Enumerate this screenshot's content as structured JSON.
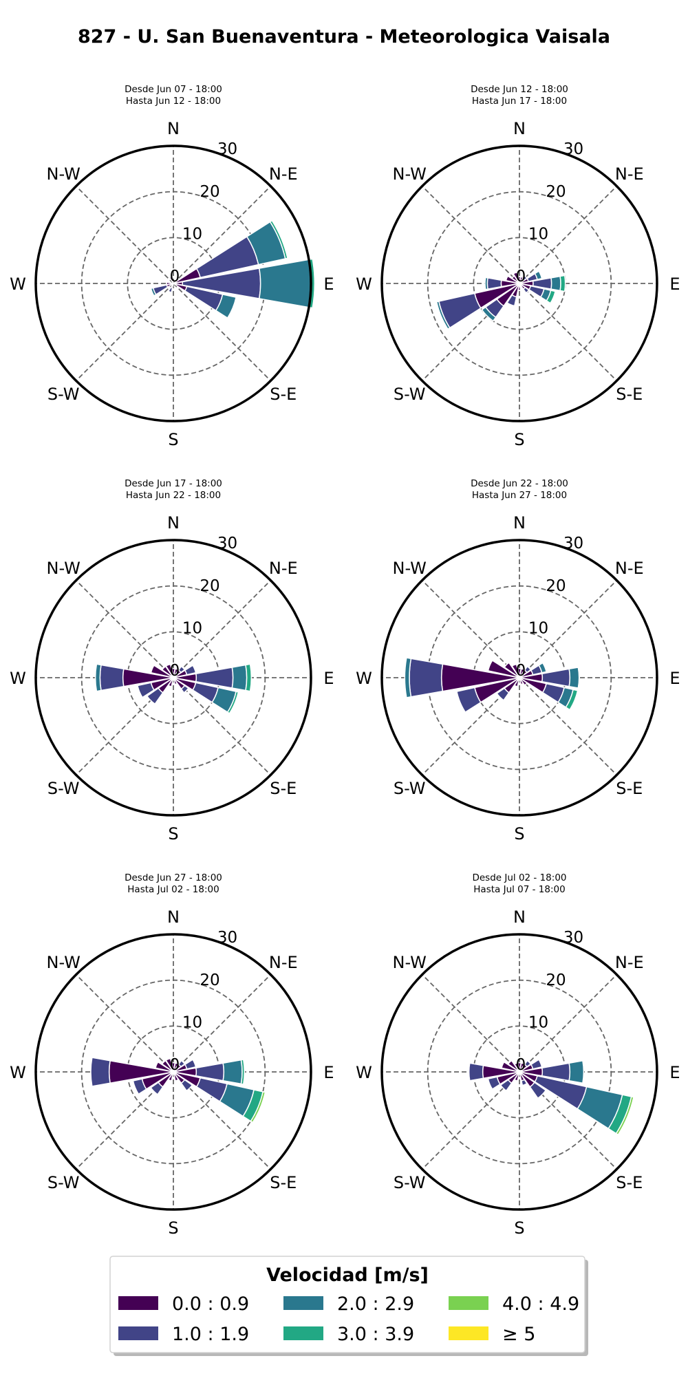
{
  "title": "827 - U. San Buenaventura - Meteorologica Vaisala",
  "direction_labels": [
    "N",
    "N-E",
    "E",
    "S-E",
    "S",
    "S-W",
    "W",
    "N-W"
  ],
  "legend": {
    "title": "Velocidad [m/s]",
    "items": [
      {
        "label": "0.0 : 0.9",
        "color": "#440154"
      },
      {
        "label": "1.0 : 1.9",
        "color": "#414487"
      },
      {
        "label": "2.0 : 2.9",
        "color": "#2a788e"
      },
      {
        "label": "3.0 : 3.9",
        "color": "#22a884"
      },
      {
        "label": "4.0 : 4.9",
        "color": "#7ad151"
      },
      {
        "label": "≥  5",
        "color": "#fde725"
      }
    ]
  },
  "chart_data": [
    {
      "type": "windrose",
      "subtitle_line1": "Desde Jun 07 - 18:00",
      "subtitle_line2": "Hasta Jun 12 - 18:00",
      "radial_ticks": [
        0,
        10,
        20,
        30
      ],
      "rmax": 30,
      "petals": [
        {
          "dir": 67.5,
          "values": [
            6,
            13,
            6,
            0.5
          ]
        },
        {
          "dir": 90,
          "values": [
            2,
            17,
            11,
            0.8
          ]
        },
        {
          "dir": 112.5,
          "values": [
            3,
            8,
            3
          ]
        },
        {
          "dir": 202.5,
          "values": [
            1,
            1
          ]
        },
        {
          "dir": 247.5,
          "values": [
            1.5,
            3,
            0.5
          ]
        },
        {
          "dir": 270,
          "values": [
            1.5
          ]
        },
        {
          "dir": 337.5,
          "values": [
            1.5
          ]
        }
      ]
    },
    {
      "type": "windrose",
      "subtitle_line1": "Desde Jun 12 - 18:00",
      "subtitle_line2": "Hasta Jun 17 - 18:00",
      "radial_ticks": [
        0,
        10,
        20,
        30
      ],
      "rmax": 30,
      "petals": [
        {
          "dir": 0,
          "values": [
            1.5
          ]
        },
        {
          "dir": 22.5,
          "values": [
            1.5
          ]
        },
        {
          "dir": 45,
          "values": [
            1,
            1
          ]
        },
        {
          "dir": 67.5,
          "values": [
            2,
            2,
            1
          ]
        },
        {
          "dir": 90,
          "values": [
            3,
            4,
            2,
            1
          ]
        },
        {
          "dir": 112.5,
          "values": [
            2.5,
            3,
            1.5,
            1
          ]
        },
        {
          "dir": 135,
          "values": [
            1.5,
            1
          ]
        },
        {
          "dir": 180,
          "values": [
            1.5
          ]
        },
        {
          "dir": 202.5,
          "values": [
            3,
            2
          ]
        },
        {
          "dir": 225,
          "values": [
            6,
            3,
            1
          ]
        },
        {
          "dir": 247.5,
          "values": [
            10,
            8,
            0.5
          ]
        },
        {
          "dir": 270,
          "values": [
            4,
            3,
            0.5
          ]
        },
        {
          "dir": 292.5,
          "values": [
            3
          ]
        },
        {
          "dir": 315,
          "values": [
            2
          ]
        },
        {
          "dir": 337.5,
          "values": [
            2.5
          ]
        }
      ]
    },
    {
      "type": "windrose",
      "subtitle_line1": "Desde Jun 17 - 18:00",
      "subtitle_line2": "Hasta Jun 22 - 18:00",
      "radial_ticks": [
        0,
        10,
        20,
        30
      ],
      "rmax": 30,
      "petals": [
        {
          "dir": 0,
          "values": [
            2
          ]
        },
        {
          "dir": 22.5,
          "values": [
            2
          ]
        },
        {
          "dir": 45,
          "values": [
            2,
            1
          ]
        },
        {
          "dir": 67.5,
          "values": [
            3,
            2
          ]
        },
        {
          "dir": 90,
          "values": [
            5,
            8,
            3,
            1
          ]
        },
        {
          "dir": 112.5,
          "values": [
            5,
            5,
            4,
            0.5
          ]
        },
        {
          "dir": 135,
          "values": [
            3,
            1
          ]
        },
        {
          "dir": 157.5,
          "values": [
            1.5
          ]
        },
        {
          "dir": 202.5,
          "values": [
            2
          ]
        },
        {
          "dir": 225,
          "values": [
            4,
            3
          ]
        },
        {
          "dir": 247.5,
          "values": [
            5,
            3
          ]
        },
        {
          "dir": 270,
          "values": [
            11,
            5,
            1
          ]
        },
        {
          "dir": 292.5,
          "values": [
            5
          ]
        },
        {
          "dir": 315,
          "values": [
            3
          ]
        },
        {
          "dir": 337.5,
          "values": [
            3
          ]
        }
      ]
    },
    {
      "type": "windrose",
      "subtitle_line1": "Desde Jun 22 - 18:00",
      "subtitle_line2": "Hasta Jun 27 - 18:00",
      "radial_ticks": [
        0,
        10,
        20,
        30
      ],
      "rmax": 30,
      "petals": [
        {
          "dir": 0,
          "values": [
            2
          ]
        },
        {
          "dir": 22.5,
          "values": [
            2
          ]
        },
        {
          "dir": 45,
          "values": [
            2,
            1
          ]
        },
        {
          "dir": 67.5,
          "values": [
            3,
            2,
            1
          ]
        },
        {
          "dir": 90,
          "values": [
            5,
            6,
            2
          ]
        },
        {
          "dir": 112.5,
          "values": [
            6,
            4,
            2,
            1
          ]
        },
        {
          "dir": 135,
          "values": [
            2
          ]
        },
        {
          "dir": 157.5,
          "values": [
            1.5
          ]
        },
        {
          "dir": 202.5,
          "values": [
            2
          ]
        },
        {
          "dir": 225,
          "values": [
            4,
            2
          ]
        },
        {
          "dir": 247.5,
          "values": [
            10,
            4
          ]
        },
        {
          "dir": 270,
          "values": [
            17,
            7,
            1
          ]
        },
        {
          "dir": 292.5,
          "values": [
            7
          ]
        },
        {
          "dir": 315,
          "values": [
            4
          ]
        },
        {
          "dir": 337.5,
          "values": [
            3
          ]
        }
      ]
    },
    {
      "type": "windrose",
      "subtitle_line1": "Desde Jun 27 - 18:00",
      "subtitle_line2": "Hasta Jul 02 - 18:00",
      "radial_ticks": [
        0,
        10,
        20,
        30
      ],
      "rmax": 30,
      "petals": [
        {
          "dir": 0,
          "values": [
            2
          ]
        },
        {
          "dir": 22.5,
          "values": [
            2
          ]
        },
        {
          "dir": 45,
          "values": [
            2,
            1
          ]
        },
        {
          "dir": 67.5,
          "values": [
            3,
            2
          ]
        },
        {
          "dir": 90,
          "values": [
            5,
            6,
            4,
            0.5
          ]
        },
        {
          "dir": 112.5,
          "values": [
            6,
            6,
            6,
            2,
            0.5
          ]
        },
        {
          "dir": 135,
          "values": [
            3,
            2
          ]
        },
        {
          "dir": 157.5,
          "values": [
            2
          ]
        },
        {
          "dir": 202.5,
          "values": [
            2
          ]
        },
        {
          "dir": 225,
          "values": [
            4,
            2
          ]
        },
        {
          "dir": 247.5,
          "values": [
            7,
            2
          ]
        },
        {
          "dir": 270,
          "values": [
            14,
            4
          ]
        },
        {
          "dir": 292.5,
          "values": [
            4
          ]
        },
        {
          "dir": 315,
          "values": [
            3
          ]
        },
        {
          "dir": 337.5,
          "values": [
            3
          ]
        }
      ]
    },
    {
      "type": "windrose",
      "subtitle_line1": "Desde Jul 02 - 18:00",
      "subtitle_line2": "Hasta Jul 07 - 18:00",
      "radial_ticks": [
        0,
        10,
        20,
        30
      ],
      "rmax": 30,
      "petals": [
        {
          "dir": 0,
          "values": [
            2
          ]
        },
        {
          "dir": 22.5,
          "values": [
            2
          ]
        },
        {
          "dir": 45,
          "values": [
            2,
            1
          ]
        },
        {
          "dir": 67.5,
          "values": [
            3,
            2
          ]
        },
        {
          "dir": 90,
          "values": [
            5,
            6,
            3
          ]
        },
        {
          "dir": 112.5,
          "values": [
            4,
            11,
            8,
            2,
            0.5
          ]
        },
        {
          "dir": 135,
          "values": [
            4,
            3
          ]
        },
        {
          "dir": 157.5,
          "values": [
            2,
            1
          ]
        },
        {
          "dir": 202.5,
          "values": [
            2
          ]
        },
        {
          "dir": 225,
          "values": [
            3,
            2
          ]
        },
        {
          "dir": 247.5,
          "values": [
            5,
            2
          ]
        },
        {
          "dir": 270,
          "values": [
            8,
            3
          ]
        },
        {
          "dir": 292.5,
          "values": [
            4
          ]
        },
        {
          "dir": 315,
          "values": [
            3
          ]
        },
        {
          "dir": 337.5,
          "values": [
            2
          ]
        }
      ]
    }
  ]
}
